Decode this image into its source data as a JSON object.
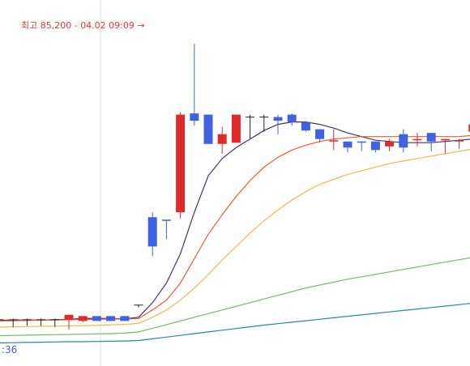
{
  "chart_data": {
    "type": "candlestick",
    "title": "",
    "high_annotation": {
      "label": "최고 85,200 - 04.02 09:09 →",
      "price": 85200,
      "time": "04.02 09:09"
    },
    "time_axis_label": ":36",
    "ylim": [
      73000,
      86000
    ],
    "colors": {
      "up": "#e02a2a",
      "down": "#3f63e0",
      "ma5": "#4b2b72",
      "ma10": "#ef5a2c",
      "ma20": "#f2b64a",
      "ma60": "#6cbf5e",
      "ma120": "#1e8e96",
      "session_divider": "#dddddd"
    },
    "candles": [
      {
        "open": 73900,
        "high": 73950,
        "low": 73700,
        "close": 73900
      },
      {
        "open": 73900,
        "high": 73950,
        "low": 73600,
        "close": 73900
      },
      {
        "open": 73900,
        "high": 73950,
        "low": 73650,
        "close": 73900
      },
      {
        "open": 73900,
        "high": 73950,
        "low": 73650,
        "close": 73900
      },
      {
        "open": 73900,
        "high": 73950,
        "low": 73600,
        "close": 73900
      },
      {
        "open": 73900,
        "high": 74100,
        "low": 73500,
        "close": 74100
      },
      {
        "open": 73850,
        "high": 74050,
        "low": 73800,
        "close": 74050
      },
      {
        "open": 74050,
        "high": 74050,
        "low": 73850,
        "close": 73850
      },
      {
        "open": 74050,
        "high": 74050,
        "low": 73850,
        "close": 73850
      },
      {
        "open": 74050,
        "high": 74050,
        "low": 73850,
        "close": 73850
      },
      {
        "open": 74500,
        "high": 74500,
        "low": 74400,
        "close": 74500
      },
      {
        "open": 78100,
        "high": 78300,
        "low": 76500,
        "close": 76900
      },
      {
        "open": 78000,
        "high": 78000,
        "low": 77200,
        "close": 77950
      },
      {
        "open": 78300,
        "high": 82400,
        "low": 78050,
        "close": 82300
      },
      {
        "open": 82350,
        "high": 85200,
        "low": 81850,
        "close": 82050
      },
      {
        "open": 82300,
        "high": 82300,
        "low": 81100,
        "close": 81100
      },
      {
        "open": 81100,
        "high": 81800,
        "low": 80700,
        "close": 81500
      },
      {
        "open": 81150,
        "high": 82300,
        "low": 81150,
        "close": 82300
      },
      {
        "open": 82200,
        "high": 82300,
        "low": 81300,
        "close": 82200
      },
      {
        "open": 82200,
        "high": 82300,
        "low": 81600,
        "close": 82200
      },
      {
        "open": 82200,
        "high": 82300,
        "low": 81500,
        "close": 82050
      },
      {
        "open": 82300,
        "high": 82350,
        "low": 81850,
        "close": 82000
      },
      {
        "open": 82000,
        "high": 82000,
        "low": 81600,
        "close": 81650
      },
      {
        "open": 81700,
        "high": 81700,
        "low": 81150,
        "close": 81300
      },
      {
        "open": 81200,
        "high": 81700,
        "low": 80850,
        "close": 81250
      },
      {
        "open": 81200,
        "high": 81200,
        "low": 80750,
        "close": 80950
      },
      {
        "open": 81200,
        "high": 81200,
        "low": 80800,
        "close": 81150
      },
      {
        "open": 81200,
        "high": 81200,
        "low": 80750,
        "close": 80850
      },
      {
        "open": 81000,
        "high": 81300,
        "low": 80800,
        "close": 81200
      },
      {
        "open": 81500,
        "high": 81700,
        "low": 80750,
        "close": 80950
      },
      {
        "open": 81250,
        "high": 81550,
        "low": 81000,
        "close": 81300
      },
      {
        "open": 81550,
        "high": 81550,
        "low": 80800,
        "close": 81200
      },
      {
        "open": 81250,
        "high": 81300,
        "low": 80700,
        "close": 81300
      },
      {
        "open": 81200,
        "high": 81300,
        "low": 80900,
        "close": 81250
      },
      {
        "open": 81600,
        "high": 81900,
        "low": 81350,
        "close": 81900
      },
      {
        "open": 81800,
        "high": 82000,
        "low": 81550,
        "close": 81900
      },
      {
        "open": 81700,
        "high": 82000,
        "low": 81500,
        "close": 81950
      },
      {
        "open": 81900,
        "high": 81950,
        "low": 81400,
        "close": 81650
      }
    ],
    "moving_averages": [
      {
        "key": "ma5",
        "values": [
          73880,
          73890,
          73890,
          73890,
          73900,
          73920,
          73950,
          73960,
          73950,
          73940,
          74000,
          74600,
          75400,
          76600,
          78300,
          79800,
          80500,
          80950,
          81300,
          81650,
          81900,
          82000,
          82000,
          81900,
          81750,
          81550,
          81400,
          81250,
          81200,
          81150,
          81150,
          81150,
          81200,
          81250,
          81300,
          81400,
          81550,
          81650
        ]
      },
      {
        "key": "ma10",
        "values": [
          73850,
          73860,
          73870,
          73880,
          73890,
          73900,
          73910,
          73920,
          73930,
          73930,
          73950,
          74300,
          74700,
          75400,
          76400,
          77400,
          78200,
          78950,
          79600,
          80150,
          80550,
          80850,
          81050,
          81200,
          81300,
          81350,
          81400,
          81400,
          81400,
          81400,
          81400,
          81400,
          81400,
          81400,
          81450,
          81500,
          81550,
          81600
        ]
      },
      {
        "key": "ma20",
        "values": [
          73600,
          73610,
          73620,
          73630,
          73640,
          73650,
          73660,
          73670,
          73690,
          73710,
          73750,
          74000,
          74300,
          74700,
          75200,
          75750,
          76350,
          76900,
          77450,
          77950,
          78400,
          78800,
          79150,
          79450,
          79650,
          79850,
          80000,
          80150,
          80300,
          80400,
          80500,
          80600,
          80700,
          80800,
          80900,
          81000,
          81100,
          81200
        ]
      },
      {
        "key": "ma60",
        "values": [
          73250,
          73260,
          73270,
          73280,
          73290,
          73300,
          73310,
          73320,
          73330,
          73350,
          73400,
          73550,
          73700,
          73850,
          74000,
          74150,
          74300,
          74450,
          74600,
          74750,
          74900,
          75050,
          75200,
          75320,
          75440,
          75560,
          75660,
          75760,
          75860,
          75960,
          76060,
          76160,
          76260,
          76360,
          76460,
          76560,
          76700,
          76860
        ]
      },
      {
        "key": "ma120",
        "values": [
          72950,
          72960,
          72970,
          72980,
          72990,
          73000,
          73000,
          73010,
          73020,
          73030,
          73050,
          73120,
          73190,
          73260,
          73330,
          73400,
          73470,
          73540,
          73610,
          73680,
          73740,
          73800,
          73860,
          73920,
          73980,
          74040,
          74100,
          74160,
          74220,
          74280,
          74340,
          74400,
          74460,
          74520,
          74580,
          74640,
          74700,
          74780
        ]
      }
    ]
  }
}
